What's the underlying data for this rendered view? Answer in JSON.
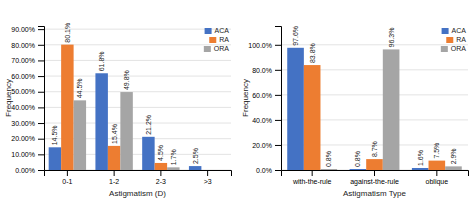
{
  "chart_data": [
    {
      "type": "bar",
      "categories": [
        "0-1",
        "1-2",
        "2-3",
        ">3"
      ],
      "series": [
        {
          "name": "ACA",
          "color": "#4472C4",
          "values": [
            14.5,
            61.8,
            21.2,
            2.5
          ],
          "value_labels": [
            "14.5%",
            "61.8%",
            "21.2%",
            "2.5%"
          ]
        },
        {
          "name": "RA",
          "color": "#ED7D31",
          "values": [
            80.1,
            15.4,
            4.5,
            0.0
          ],
          "value_labels": [
            "80.1%",
            "15.4%",
            "4.5%",
            null
          ]
        },
        {
          "name": "ORA",
          "color": "#A5A5A5",
          "values": [
            44.5,
            49.8,
            1.7,
            0.0
          ],
          "value_labels": [
            "44.5%",
            "49.8%",
            "1.7%",
            null
          ]
        }
      ],
      "xlabel": "Astigmatism (D)",
      "ylabel": "Frequency",
      "ylim": [
        0,
        92
      ],
      "yticks": [
        {
          "value": 0,
          "label": "0.00%"
        },
        {
          "value": 10,
          "label": "10.00%"
        },
        {
          "value": 20,
          "label": "20.00%"
        },
        {
          "value": 30,
          "label": "30.00%"
        },
        {
          "value": 40,
          "label": "40.00%"
        },
        {
          "value": 50,
          "label": "50.00%"
        },
        {
          "value": 60,
          "label": "60.00%"
        },
        {
          "value": 70,
          "label": "70.00%"
        },
        {
          "value": 80,
          "label": "80.00%"
        },
        {
          "value": 90,
          "label": "90.00%"
        }
      ],
      "grid": true,
      "legend": "upper right",
      "data_labels": true
    },
    {
      "type": "bar",
      "categories": [
        "with-the-rule",
        "against-the-rule",
        "oblique"
      ],
      "series": [
        {
          "name": "ACA",
          "color": "#4472C4",
          "values": [
            97.6,
            0.8,
            1.6
          ],
          "value_labels": [
            "97.6%",
            "0.8%",
            "1.6%"
          ]
        },
        {
          "name": "RA",
          "color": "#ED7D31",
          "values": [
            83.8,
            8.7,
            7.5
          ],
          "value_labels": [
            "83.8%",
            "8.7%",
            "7.5%"
          ]
        },
        {
          "name": "ORA",
          "color": "#A5A5A5",
          "values": [
            0.8,
            96.3,
            2.9
          ],
          "value_labels": [
            "0.8%",
            "96.3%",
            "2.9%"
          ]
        }
      ],
      "xlabel": "Astigmatism Type",
      "ylabel": "Frequency",
      "ylim": [
        0,
        115
      ],
      "yticks": [
        {
          "value": 0,
          "label": "0.0%"
        },
        {
          "value": 20,
          "label": "20.0%"
        },
        {
          "value": 40,
          "label": "40.0%"
        },
        {
          "value": 60,
          "label": "60.0%"
        },
        {
          "value": 80,
          "label": "80.0%"
        },
        {
          "value": 100,
          "label": "100.0%"
        }
      ],
      "grid": true,
      "legend": "upper right",
      "data_labels": true
    }
  ]
}
